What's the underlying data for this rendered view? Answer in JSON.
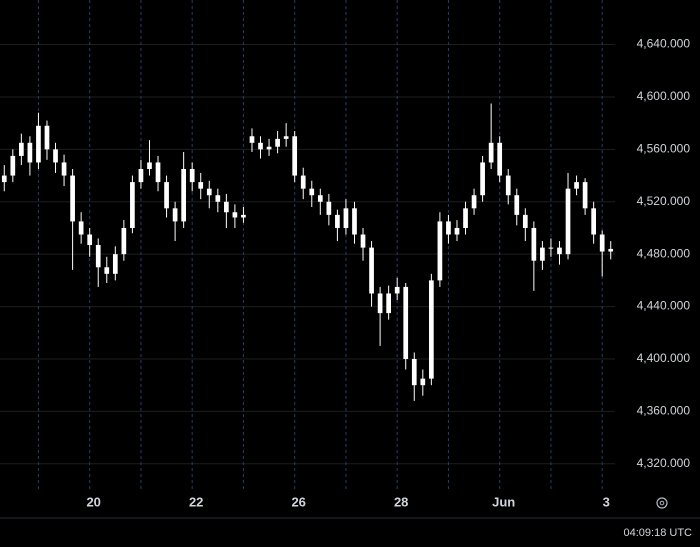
{
  "chart_data": {
    "type": "candlestick",
    "color": "#ffffff",
    "x": [
      0,
      1,
      2,
      3,
      4,
      5,
      6,
      7,
      8,
      9,
      10,
      11,
      12,
      13,
      14,
      15,
      16,
      17,
      18,
      19,
      20,
      21,
      22,
      23,
      24,
      25,
      26,
      27,
      28,
      29,
      30,
      31,
      32,
      33,
      34,
      35,
      36,
      37,
      38,
      39,
      40,
      41,
      42,
      43,
      44,
      45,
      46,
      47,
      48,
      49,
      50,
      51,
      52,
      53,
      54,
      55,
      56,
      57,
      58,
      59,
      60,
      61,
      62,
      63,
      64,
      65,
      66,
      67,
      68,
      69,
      70,
      71
    ],
    "open": [
      4535,
      4540,
      4555,
      4565,
      4550,
      4578,
      4560,
      4550,
      4540,
      4505,
      4495,
      4487,
      4470,
      4465,
      4480,
      4500,
      4535,
      4545,
      4550,
      4535,
      4515,
      4505,
      4545,
      4535,
      4530,
      4525,
      4520,
      4512,
      4508,
      4570,
      4565,
      4560,
      4562,
      4568,
      4570,
      4540,
      4530,
      4525,
      4520,
      4510,
      4500,
      4515,
      4495,
      4485,
      4450,
      4435,
      4450,
      4455,
      4400,
      4380,
      4385,
      4460,
      4505,
      4495,
      4500,
      4515,
      4525,
      4550,
      4565,
      4540,
      4525,
      4510,
      4500,
      4475,
      4485,
      4485,
      4480,
      4530,
      4535,
      4515,
      4495,
      4482
    ],
    "high": [
      4548,
      4560,
      4572,
      4570,
      4588,
      4582,
      4565,
      4556,
      4545,
      4512,
      4500,
      4492,
      4478,
      4486,
      4506,
      4540,
      4552,
      4567,
      4555,
      4540,
      4520,
      4558,
      4550,
      4542,
      4536,
      4530,
      4526,
      4518,
      4516,
      4576,
      4570,
      4568,
      4574,
      4580,
      4574,
      4546,
      4536,
      4530,
      4526,
      4514,
      4522,
      4520,
      4500,
      4490,
      4455,
      4456,
      4462,
      4458,
      4405,
      4392,
      4465,
      4512,
      4510,
      4506,
      4520,
      4530,
      4555,
      4595,
      4570,
      4545,
      4530,
      4515,
      4505,
      4490,
      4492,
      4490,
      4542,
      4540,
      4538,
      4520,
      4498,
      4490
    ],
    "low": [
      4528,
      4535,
      4548,
      4540,
      4545,
      4552,
      4542,
      4532,
      4468,
      4488,
      4478,
      4455,
      4458,
      4460,
      4475,
      4496,
      4530,
      4540,
      4528,
      4508,
      4490,
      4500,
      4528,
      4522,
      4515,
      4512,
      4500,
      4500,
      4504,
      4558,
      4553,
      4555,
      4557,
      4562,
      4535,
      4522,
      4516,
      4510,
      4502,
      4490,
      4495,
      4488,
      4475,
      4440,
      4410,
      4430,
      4445,
      4392,
      4368,
      4372,
      4380,
      4455,
      4488,
      4490,
      4495,
      4510,
      4520,
      4545,
      4535,
      4518,
      4502,
      4490,
      4452,
      4468,
      4478,
      4472,
      4476,
      4525,
      4510,
      4488,
      4463,
      4476
    ],
    "close": [
      4540,
      4555,
      4565,
      4550,
      4578,
      4560,
      4550,
      4540,
      4505,
      4495,
      4487,
      4470,
      4465,
      4480,
      4500,
      4535,
      4545,
      4550,
      4535,
      4515,
      4505,
      4545,
      4535,
      4530,
      4525,
      4520,
      4512,
      4508,
      4510,
      4565,
      4560,
      4562,
      4568,
      4570,
      4540,
      4530,
      4525,
      4520,
      4510,
      4500,
      4515,
      4495,
      4485,
      4450,
      4435,
      4450,
      4455,
      4400,
      4380,
      4385,
      4460,
      4505,
      4495,
      4500,
      4515,
      4525,
      4550,
      4565,
      4540,
      4525,
      4510,
      4500,
      4475,
      4485,
      4485,
      4480,
      4530,
      4535,
      4515,
      4495,
      4482,
      4484
    ],
    "xlim": [
      -0.5,
      71.5
    ],
    "xticks": [
      {
        "value": 10,
        "label": "20"
      },
      {
        "value": 22,
        "label": "22"
      },
      {
        "value": 34,
        "label": "26"
      },
      {
        "value": 46,
        "label": "28"
      },
      {
        "value": 58,
        "label": "Jun"
      },
      {
        "value": 70,
        "label": "3"
      }
    ],
    "xminor": [
      4,
      16,
      28,
      40,
      52,
      64
    ],
    "ylim": [
      4300,
      4674
    ],
    "yticks": [
      {
        "value": 4320,
        "label": "4,320.000"
      },
      {
        "value": 4360,
        "label": "4,360.000"
      },
      {
        "value": 4400,
        "label": "4,400.000"
      },
      {
        "value": 4440,
        "label": "4,440.000"
      },
      {
        "value": 4480,
        "label": "4,480.000"
      },
      {
        "value": 4520,
        "label": "4,520.000"
      },
      {
        "value": 4560,
        "label": "4,560.000"
      },
      {
        "value": 4600,
        "label": "4,600.000"
      },
      {
        "value": 4640,
        "label": "4,640.000"
      }
    ],
    "grid": true
  },
  "status_bar": {
    "time": "04:09:18 UTC"
  }
}
